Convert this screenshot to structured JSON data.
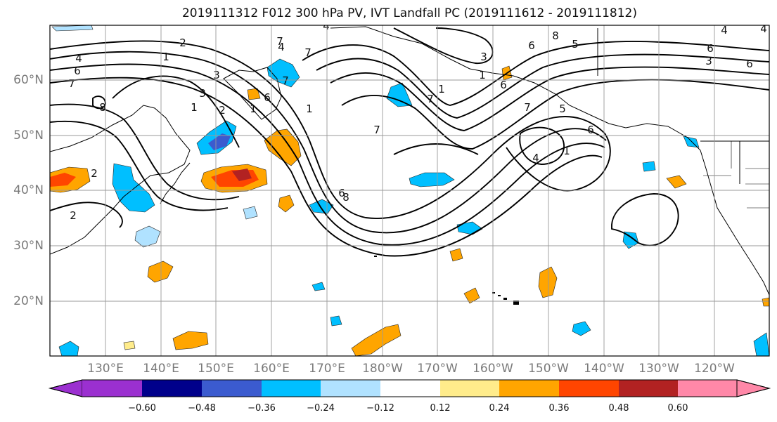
{
  "title": "2019111312 F012 300 hPa PV, IVT Landfall PC (2019111612 - 2019111812)",
  "lat_ticks": [
    "20°N",
    "30°N",
    "40°N",
    "50°N",
    "60°N"
  ],
  "lon_ticks": [
    "130°E",
    "140°E",
    "150°E",
    "160°E",
    "170°E",
    "180°W",
    "170°W",
    "160°W",
    "150°W",
    "140°W",
    "130°W",
    "120°W"
  ],
  "contour_labels": [
    "2",
    "1",
    "4",
    "6",
    "7",
    "8",
    "1",
    "2",
    "3",
    "3",
    "6",
    "1",
    "4",
    "7",
    "1",
    "7",
    "7",
    "8",
    "6",
    "4",
    "5",
    "5",
    "3",
    "6",
    "4",
    "4",
    "7",
    "8",
    "6",
    "4",
    "2",
    "2",
    "6",
    "7",
    "1",
    "6",
    "1",
    "6",
    "1",
    "3",
    "7"
  ],
  "colorbar": {
    "ticks": [
      "−0.60",
      "−0.48",
      "−0.36",
      "−0.24",
      "−0.12",
      "0.12",
      "0.24",
      "0.36",
      "0.48",
      "0.60"
    ],
    "colors": [
      "#9b30d0",
      "#00008b",
      "#3b5bcf",
      "#00bfff",
      "#b0e2ff",
      "#ffffff",
      "#ffec8b",
      "#ffa500",
      "#ff4500",
      "#b22222",
      "#ff88a8"
    ]
  }
}
